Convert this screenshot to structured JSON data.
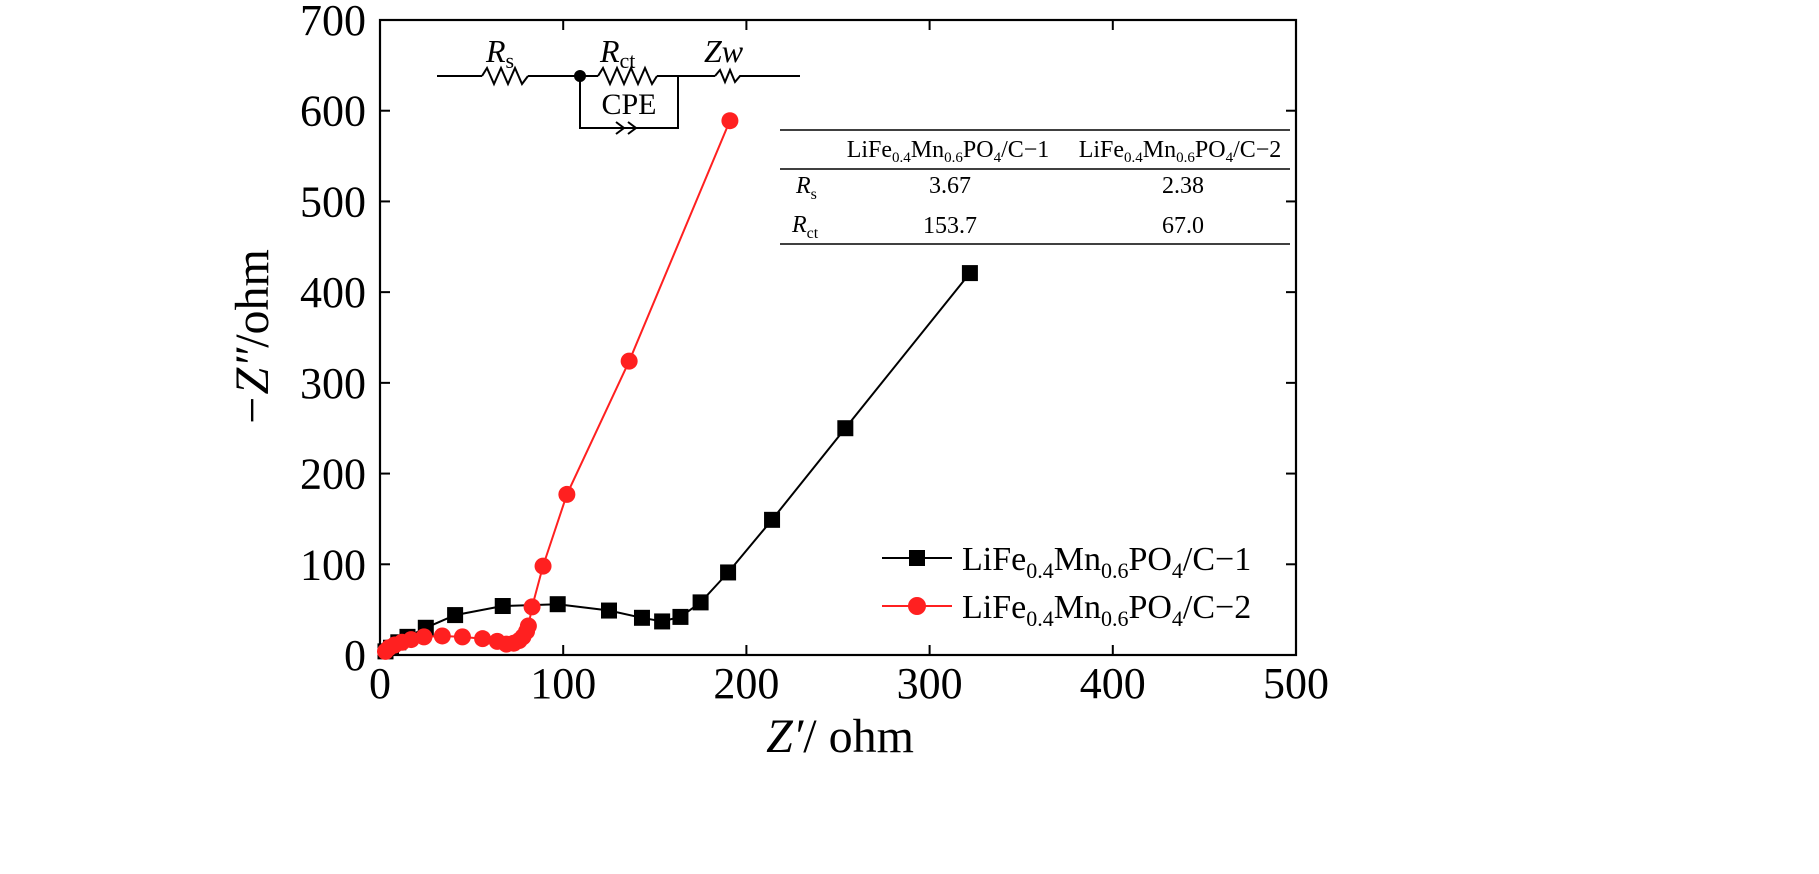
{
  "chart_data": {
    "type": "scatter",
    "xlabel": {
      "var": "Z′",
      "unit": "/ ohm"
    },
    "ylabel": {
      "var": "−Z″",
      "unit": "/ohm"
    },
    "xlim": [
      0,
      500
    ],
    "ylim": [
      0,
      700
    ],
    "xticks": [
      0,
      100,
      200,
      300,
      400,
      500
    ],
    "yticks": [
      0,
      100,
      200,
      300,
      400,
      500,
      600,
      700
    ],
    "tick_direction": "in",
    "grid": false,
    "legend_position": "bottom-right",
    "series": [
      {
        "name": "LiFe0.4Mn0.6PO4/C-1",
        "name_parts": [
          "LiFe",
          "0.4",
          "Mn",
          "0.6",
          "PO",
          "4",
          "/C−1"
        ],
        "color": "#000000",
        "marker": "square",
        "x": [
          3,
          6,
          10,
          15,
          25,
          41,
          67,
          97,
          125,
          143,
          154,
          164,
          175,
          190,
          214,
          254,
          322
        ],
        "y": [
          4,
          8,
          14,
          20,
          30,
          44,
          54,
          56,
          49,
          41,
          37,
          42,
          58,
          91,
          149,
          250,
          421
        ]
      },
      {
        "name": "LiFe0.4Mn0.6PO4/C-2",
        "name_parts": [
          "LiFe",
          "0.4",
          "Mn",
          "0.6",
          "PO",
          "4",
          "/C−2"
        ],
        "color": "#ff2020",
        "marker": "circle",
        "x": [
          3,
          5,
          8,
          12,
          17,
          24,
          34,
          45,
          56,
          64,
          69,
          73,
          76,
          78,
          80,
          81,
          83,
          89,
          102,
          136,
          191
        ],
        "y": [
          4,
          8,
          11,
          14,
          17,
          20,
          21,
          20,
          18,
          15,
          12,
          13,
          16,
          20,
          26,
          32,
          53,
          98,
          177,
          324,
          589
        ]
      }
    ],
    "circuit": {
      "labels": {
        "rs": {
          "main": "R",
          "sub": "s"
        },
        "rct": {
          "main": "R",
          "sub": "ct"
        },
        "zw": "Zw",
        "cpe": "CPE"
      }
    },
    "table": {
      "header": [
        "",
        "LiFe0.4Mn0.6PO4/C-1",
        "LiFe0.4Mn0.6PO4/C-2"
      ],
      "rows": [
        {
          "param": {
            "main": "R",
            "sub": "s"
          },
          "values": [
            "3.67",
            "2.38"
          ]
        },
        {
          "param": {
            "main": "R",
            "sub": "ct"
          },
          "values": [
            "153.7",
            "67.0"
          ]
        }
      ]
    }
  }
}
